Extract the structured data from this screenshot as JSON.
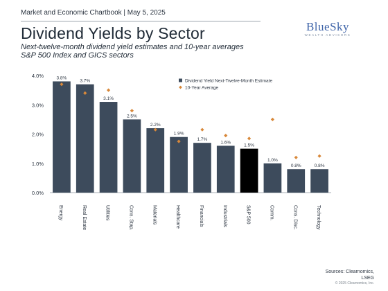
{
  "header": {
    "line": "Market and Economic Chartbook | May 5, 2025"
  },
  "title": "Dividend Yields by Sector",
  "subtitle": {
    "line1": "Next-twelve-month dividend yield estimates and 10-year averages",
    "line2": "S&P 500 Index and GICS sectors"
  },
  "logo": {
    "name": "BlueSky",
    "tagline": "WEALTH ADVISORS"
  },
  "footer": {
    "sources_line1": "Sources: Clearnomics,",
    "sources_line2": "LSEG",
    "copyright": "© 2025 Clearnomics, Inc."
  },
  "colors": {
    "bar": "#3d4b5c",
    "highlight": "#000000",
    "marker": "#d8883a"
  },
  "chart_data": {
    "type": "bar",
    "categories": [
      "Energy",
      "Real Estate",
      "Utilities",
      "Cons. Stap.",
      "Materials",
      "Healthcare",
      "Financials",
      "Industrials",
      "S&P 500",
      "Comm.",
      "Cons. Disc.",
      "Technology"
    ],
    "series": [
      {
        "name": "Dividend Yield Next-Twelve-Month Estimate",
        "type": "bar",
        "values": [
          3.8,
          3.7,
          3.1,
          2.5,
          2.2,
          1.9,
          1.7,
          1.6,
          1.5,
          1.0,
          0.8,
          0.8
        ],
        "labels": [
          "3.8%",
          "3.7%",
          "3.1%",
          "2.5%",
          "2.2%",
          "1.9%",
          "1.7%",
          "1.6%",
          "1.5%",
          "1.0%",
          "0.8%",
          "0.8%"
        ]
      },
      {
        "name": "10-Year Average",
        "type": "scatter",
        "marker": "diamond",
        "values": [
          3.7,
          3.4,
          3.5,
          2.8,
          2.15,
          1.75,
          2.15,
          1.95,
          1.85,
          2.5,
          1.2,
          1.25
        ]
      }
    ],
    "highlight_category": "S&P 500",
    "yticks": [
      "0.0%",
      "1.0%",
      "2.0%",
      "3.0%",
      "4.0%"
    ],
    "ylim": [
      0,
      4
    ],
    "legend": "top-right",
    "grid": false
  }
}
